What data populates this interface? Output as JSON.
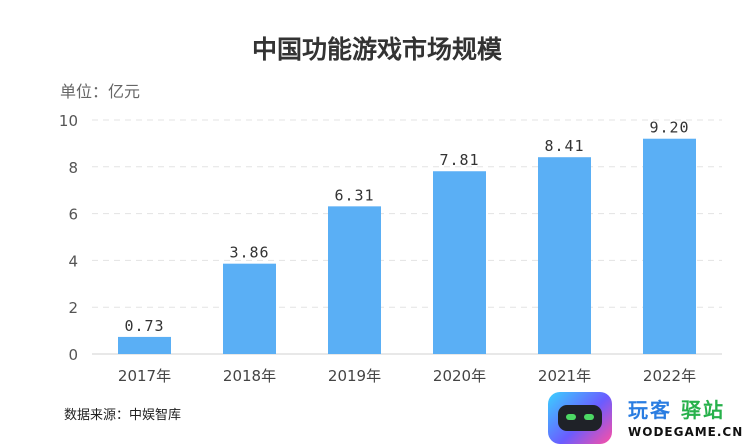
{
  "chart_data": {
    "type": "bar",
    "title": "中国功能游戏市场规模",
    "unit_label": "单位：亿元",
    "categories": [
      "2017年",
      "2018年",
      "2019年",
      "2020年",
      "2021年",
      "2022年"
    ],
    "values": [
      0.73,
      3.86,
      6.31,
      7.81,
      8.41,
      9.2
    ],
    "value_labels": [
      "0.73",
      "3.86",
      "6.31",
      "7.81",
      "8.41",
      "9.20"
    ],
    "ylim": [
      0,
      10
    ],
    "yticks": [
      0,
      2,
      4,
      6,
      8,
      10
    ],
    "grid": true,
    "bar_color": "#5aaff5"
  },
  "source": "数据来源：中娱智库",
  "watermark": {
    "name_part1": "玩客",
    "name_part2": "驿站",
    "domain": "WODEGAME.CN",
    "icon": "robot-face-icon"
  }
}
